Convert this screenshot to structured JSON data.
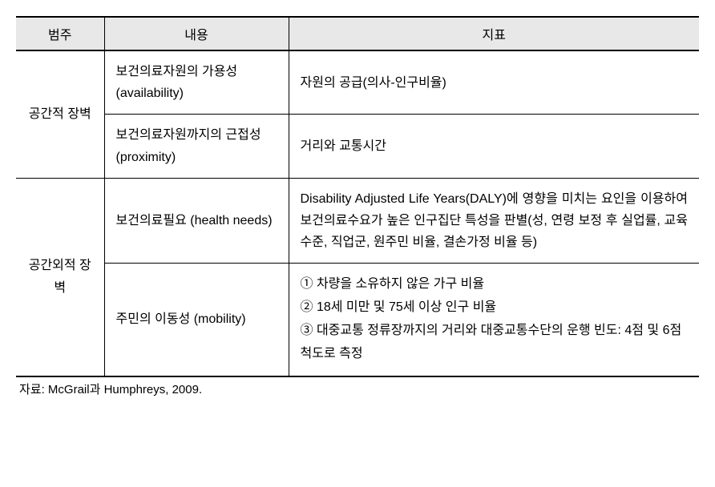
{
  "headers": {
    "category": "범주",
    "content": "내용",
    "indicator": "지표"
  },
  "rows": [
    {
      "category": "공간적 장벽",
      "category_rowspan": 2,
      "content": "보건의료자원의 가용성(availability)",
      "indicator": "자원의 공급(의사-인구비율)"
    },
    {
      "content": "보건의료자원까지의 근접성(proximity)",
      "indicator": "거리와 교통시간"
    },
    {
      "category": "공간외적 장벽",
      "category_rowspan": 2,
      "content": "보건의료필요 (health needs)",
      "indicator": "Disability Adjusted Life Years(DALY)에 영향을 미치는 요인을 이용하여 보건의료수요가 높은 인구집단 특성을 판별(성, 연령 보정 후 실업률, 교육수준, 직업군, 원주민 비율, 결손가정 비율 등)"
    },
    {
      "content": "주민의 이동성 (mobility)",
      "indicator_list": [
        "① 차량을 소유하지 않은 가구 비율",
        "② 18세 미만 및 75세 이상 인구 비율",
        "③ 대중교통 정류장까지의 거리와 대중교통수단의 운행 빈도: 4점 및 6점 척도로 측정"
      ]
    }
  ],
  "source": "자료: McGrail과 Humphreys, 2009."
}
